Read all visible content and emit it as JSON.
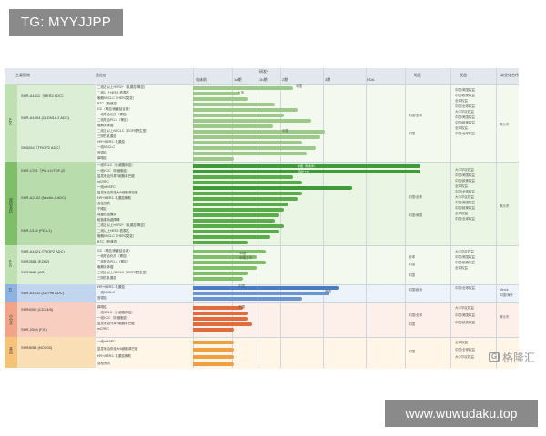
{
  "watermark_tag": "TG: MYYJJPP",
  "site_url": "www.wuwudaku.top",
  "logo_text": "格隆汇",
  "logo_mark": "G",
  "table": {
    "headers": {
      "col1": "主要药物",
      "col2": "适应症",
      "phase": "研发*",
      "p1": "临床前",
      "p2": "1a期",
      "p3": "1b期",
      "p4": "2期",
      "p5": "3期",
      "p6": "NDA",
      "region": "地区",
      "rights": "权益",
      "partner": "商业化合作"
    },
    "sections": [
      {
        "name": "ADC"
      },
      {
        "name": "双抗/多抗"
      },
      {
        "name": "ADC"
      },
      {
        "name": "IO"
      },
      {
        "name": "小分子"
      },
      {
        "name": "其他"
      }
    ],
    "drugs": [
      {
        "name": "SHR-A1811（HER2 ADC）"
      },
      {
        "name": "SHR-A1904 (CLDN18.2 ADC)"
      },
      {
        "name": "SKB264（TROP2 ADC）"
      },
      {
        "name": "SHR-1701（PD-L1/TGF-β）"
      },
      {
        "name": "SHR-A2102 (Nectin-4 ADC)"
      },
      {
        "name": "SHR-1316 (PD-L1)"
      },
      {
        "name": "SHR-A1921 (TROP2 ADC)"
      },
      {
        "name": "SHR2554 (EZH2)"
      },
      {
        "name": "SHR3680 (AR)"
      },
      {
        "name": "SHR-A1912 (CD79b ADC)"
      },
      {
        "name": "SHR6390 (CDK4/6)"
      },
      {
        "name": "SHR-2004 (FXI)"
      },
      {
        "name": "SHR8058 (NOV03)"
      }
    ],
    "indications": [
      "二线及以上HER2+（乳腺癌/胃癌）",
      "二线以上HER2-低表达",
      "晚期NSCLC（HER2突变）",
      "BTC（胆道癌）",
      "GC（胃癌/食管结合部）",
      "一线联合化疗（胃癌）",
      "二线联合PD-1（胃癌）",
      "晚期实体瘤",
      "二线及以上NSCLC（EGFR野生型）",
      "三阴性乳腺癌",
      "HR+/HER2- 乳腺癌",
      "一线NSCLC",
      "宫颈癌",
      "鼻咽癌",
      "一线SCLC（小细胞肺癌）",
      "一线HCC（肝细胞癌）",
      "复发难治外周T细胞淋巴瘤",
      "mCRPC",
      "一线mHSPC",
      "复发难治弥漫大B细胞淋巴瘤",
      "HR+/HER2- 乳腺癌辅助",
      "血栓预防",
      "干眼症",
      "真菌性结膜炎",
      "睑板腺功能障碍"
    ],
    "bar_notes": {
      "n1": "上市",
      "n2": "中国",
      "n3": "中国（附条件）",
      "n4": "获批/上市",
      "n5": "美国",
      "n6": "申报上市",
      "n7": "获批上市",
      "n8": "中国获批上市"
    },
    "regions": [
      "中国/全球",
      "中国",
      "中国/美国",
      "全球",
      "中国/欧洲",
      "美国"
    ],
    "rights": [
      "中国/美国权益",
      "中国/欧美权益",
      "全球权益",
      "中国/全球权益",
      "大中华区权益"
    ],
    "partners": [
      "默沙东",
      "Merck",
      "中国/海外",
      "Novaliq",
      "未定"
    ]
  }
}
